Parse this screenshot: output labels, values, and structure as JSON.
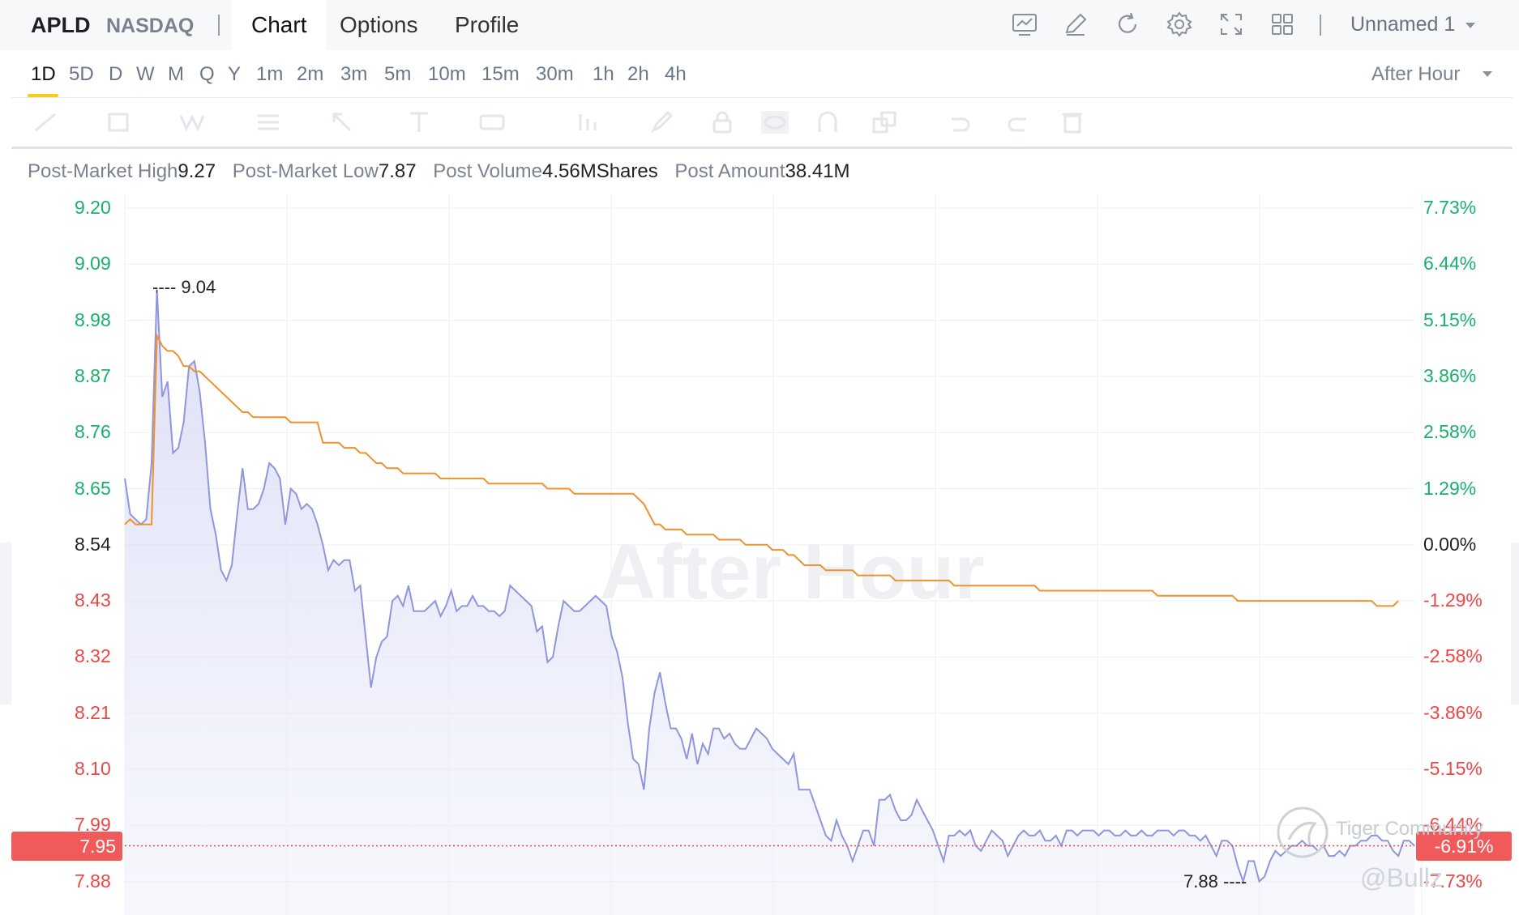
{
  "header": {
    "symbol": "APLD",
    "exchange": "NASDAQ",
    "tabs": [
      {
        "label": "Chart",
        "active": true
      },
      {
        "label": "Options",
        "active": false
      },
      {
        "label": "Profile",
        "active": false
      }
    ],
    "tool_icons": [
      "indicator-icon",
      "draw-icon",
      "refresh-icon",
      "settings-icon",
      "fullscreen-icon",
      "layout-grid-icon"
    ],
    "layout_name": "Unnamed 1"
  },
  "intervals": {
    "items": [
      "1D",
      "5D",
      "D",
      "W",
      "M",
      "Q",
      "Y",
      "1m",
      "2m",
      "3m",
      "5m",
      "10m",
      "15m",
      "30m",
      "1h",
      "2h",
      "4h"
    ],
    "selected": "1D",
    "session": "After Hour"
  },
  "drawing_toolbar": {
    "icons": [
      "trend-line-icon",
      "rectangle-icon",
      "pattern-icon",
      "fib-icon",
      "arrow-icon",
      "text-icon",
      "measure-icon",
      "bar-pattern-icon",
      "brush-icon",
      "lock-icon",
      "visibility-icon",
      "magnet-icon",
      "copy-icon",
      "undo-icon",
      "redo-icon",
      "delete-icon"
    ],
    "enabled": false
  },
  "stats": {
    "high_label": "Post-Market High",
    "high_value": "9.27",
    "low_label": "Post-Market Low",
    "low_value": "7.87",
    "volume_label": "Post Volume",
    "volume_value": "4.56MShares",
    "amount_label": "Post Amount",
    "amount_value": "38.41M"
  },
  "chart_data": {
    "type": "area",
    "watermark": "After Hour",
    "y_left_ticks": [
      "9.20",
      "9.09",
      "8.98",
      "8.87",
      "8.76",
      "8.65",
      "8.54",
      "8.43",
      "8.32",
      "8.21",
      "8.10",
      "7.99",
      "7.88"
    ],
    "y_right_ticks": [
      "7.73%",
      "6.44%",
      "5.15%",
      "3.86%",
      "2.58%",
      "1.29%",
      "0.00%",
      "-1.29%",
      "-2.58%",
      "-3.86%",
      "-5.15%",
      "-6.44%",
      "-7.73%"
    ],
    "ylim": [
      7.85,
      9.2
    ],
    "prev_close": 8.54,
    "current_price": "7.95",
    "current_change": "-6.91%",
    "high_marker": "9.04",
    "low_marker": "7.88",
    "series": [
      {
        "name": "price",
        "color": "#8f96dc",
        "values": [
          8.67,
          8.6,
          8.59,
          8.58,
          8.59,
          8.7,
          9.04,
          8.83,
          8.86,
          8.72,
          8.73,
          8.78,
          8.89,
          8.9,
          8.84,
          8.74,
          8.61,
          8.56,
          8.49,
          8.47,
          8.5,
          8.6,
          8.69,
          8.61,
          8.61,
          8.62,
          8.65,
          8.7,
          8.69,
          8.67,
          8.58,
          8.65,
          8.64,
          8.61,
          8.62,
          8.61,
          8.58,
          8.54,
          8.49,
          8.51,
          8.5,
          8.51,
          8.51,
          8.45,
          8.46,
          8.36,
          8.26,
          8.32,
          8.35,
          8.36,
          8.43,
          8.44,
          8.42,
          8.46,
          8.41,
          8.41,
          8.41,
          8.42,
          8.43,
          8.4,
          8.42,
          8.45,
          8.41,
          8.42,
          8.42,
          8.44,
          8.42,
          8.42,
          8.41,
          8.41,
          8.4,
          8.41,
          8.46,
          8.45,
          8.44,
          8.43,
          8.42,
          8.37,
          8.38,
          8.31,
          8.32,
          8.38,
          8.43,
          8.42,
          8.41,
          8.41,
          8.42,
          8.43,
          8.44,
          8.43,
          8.42,
          8.36,
          8.33,
          8.28,
          8.19,
          8.12,
          8.11,
          8.06,
          8.18,
          8.25,
          8.29,
          8.23,
          8.18,
          8.18,
          8.16,
          8.12,
          8.17,
          8.11,
          8.15,
          8.13,
          8.18,
          8.18,
          8.16,
          8.17,
          8.15,
          8.14,
          8.14,
          8.16,
          8.18,
          8.17,
          8.16,
          8.14,
          8.13,
          8.12,
          8.11,
          8.13,
          8.06,
          8.06,
          8.06,
          8.03,
          8.0,
          7.97,
          7.96,
          8.0,
          7.97,
          7.95,
          7.92,
          7.95,
          7.98,
          7.98,
          7.95,
          8.04,
          8.04,
          8.05,
          8.02,
          8.0,
          8.0,
          8.01,
          8.04,
          8.02,
          8.0,
          7.98,
          7.95,
          7.92,
          7.97,
          7.97,
          7.98,
          7.97,
          7.98,
          7.95,
          7.94,
          7.96,
          7.98,
          7.97,
          7.96,
          7.93,
          7.95,
          7.97,
          7.98,
          7.97,
          7.97,
          7.98,
          7.96,
          7.96,
          7.97,
          7.95,
          7.98,
          7.98,
          7.97,
          7.98,
          7.98,
          7.98,
          7.97,
          7.98,
          7.98,
          7.97,
          7.97,
          7.98,
          7.97,
          7.97,
          7.98,
          7.97,
          7.97,
          7.98,
          7.98,
          7.98,
          7.97,
          7.98,
          7.98,
          7.97,
          7.97,
          7.96,
          7.97,
          7.95,
          7.93,
          7.96,
          7.96,
          7.95,
          7.91,
          7.88,
          7.92,
          7.92,
          7.88,
          7.89,
          7.92,
          7.94,
          7.93,
          7.94,
          7.95,
          7.95,
          7.96,
          7.95,
          7.95,
          7.94,
          7.95,
          7.93,
          7.93,
          7.94,
          7.93,
          7.95,
          7.95,
          7.96,
          7.96,
          7.97,
          7.97,
          7.96,
          7.96,
          7.94,
          7.93,
          7.96,
          7.96,
          7.95
        ]
      },
      {
        "name": "average",
        "color": "#f0912d",
        "values": [
          8.58,
          8.59,
          8.58,
          8.58,
          8.58,
          8.58,
          8.95,
          8.93,
          8.92,
          8.92,
          8.91,
          8.89,
          8.89,
          8.88,
          8.88,
          8.87,
          8.86,
          8.85,
          8.84,
          8.83,
          8.82,
          8.81,
          8.8,
          8.8,
          8.79,
          8.79,
          8.79,
          8.79,
          8.79,
          8.79,
          8.79,
          8.78,
          8.78,
          8.78,
          8.78,
          8.78,
          8.78,
          8.74,
          8.74,
          8.74,
          8.74,
          8.73,
          8.73,
          8.73,
          8.72,
          8.72,
          8.71,
          8.7,
          8.7,
          8.69,
          8.69,
          8.69,
          8.68,
          8.68,
          8.68,
          8.68,
          8.68,
          8.68,
          8.68,
          8.67,
          8.67,
          8.67,
          8.67,
          8.67,
          8.67,
          8.67,
          8.67,
          8.67,
          8.66,
          8.66,
          8.66,
          8.66,
          8.66,
          8.66,
          8.66,
          8.66,
          8.66,
          8.66,
          8.66,
          8.65,
          8.65,
          8.65,
          8.65,
          8.65,
          8.64,
          8.64,
          8.64,
          8.64,
          8.64,
          8.64,
          8.64,
          8.64,
          8.64,
          8.64,
          8.64,
          8.64,
          8.63,
          8.62,
          8.6,
          8.58,
          8.58,
          8.57,
          8.57,
          8.57,
          8.57,
          8.56,
          8.56,
          8.56,
          8.56,
          8.56,
          8.56,
          8.55,
          8.55,
          8.55,
          8.55,
          8.55,
          8.54,
          8.54,
          8.54,
          8.54,
          8.54,
          8.53,
          8.53,
          8.53,
          8.52,
          8.52,
          8.51,
          8.5,
          8.5,
          8.5,
          8.5,
          8.49,
          8.49,
          8.49,
          8.49,
          8.49,
          8.49,
          8.48,
          8.48,
          8.48,
          8.48,
          8.48,
          8.48,
          8.48,
          8.47,
          8.47,
          8.47,
          8.47,
          8.47,
          8.47,
          8.47,
          8.47,
          8.47,
          8.47,
          8.47,
          8.46,
          8.46,
          8.46,
          8.46,
          8.46,
          8.46,
          8.46,
          8.46,
          8.46,
          8.46,
          8.46,
          8.46,
          8.46,
          8.46,
          8.46,
          8.46,
          8.45,
          8.45,
          8.45,
          8.45,
          8.45,
          8.45,
          8.45,
          8.45,
          8.45,
          8.45,
          8.45,
          8.45,
          8.45,
          8.45,
          8.45,
          8.45,
          8.45,
          8.45,
          8.45,
          8.45,
          8.45,
          8.45,
          8.44,
          8.44,
          8.44,
          8.44,
          8.44,
          8.44,
          8.44,
          8.44,
          8.44,
          8.44,
          8.44,
          8.44,
          8.44,
          8.44,
          8.44,
          8.43,
          8.43,
          8.43,
          8.43,
          8.43,
          8.43,
          8.43,
          8.43,
          8.43,
          8.43,
          8.43,
          8.43,
          8.43,
          8.43,
          8.43,
          8.43,
          8.43,
          8.43,
          8.43,
          8.43,
          8.43,
          8.43,
          8.43,
          8.43,
          8.43,
          8.43,
          8.42,
          8.42,
          8.42,
          8.42,
          8.43
        ]
      }
    ],
    "grid": true,
    "colors": {
      "up": "#17b26a",
      "down": "#f04646",
      "accent": "#f5cd1a"
    }
  },
  "branding": {
    "community": "Tiger Community",
    "handle": "@Bullz"
  }
}
